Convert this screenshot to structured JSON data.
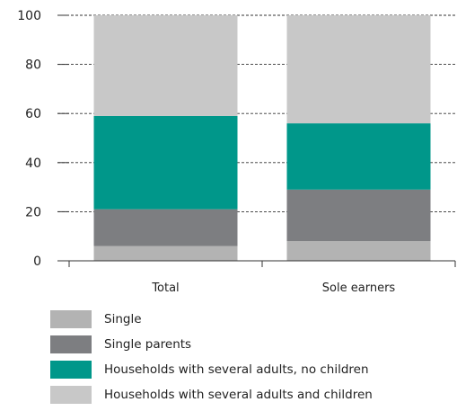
{
  "chart_data": {
    "type": "bar",
    "stacked": true,
    "categories": [
      "Total",
      "Sole earners"
    ],
    "series": [
      {
        "name": "Single",
        "values": [
          6,
          8
        ],
        "color": "#b3b3b3"
      },
      {
        "name": "Single parents",
        "values": [
          15,
          21
        ],
        "color": "#7d7e81"
      },
      {
        "name": "Households with several adults, no children",
        "values": [
          38,
          27
        ],
        "color": "#00978a"
      },
      {
        "name": "Households with several adults and children",
        "values": [
          41,
          44
        ],
        "color": "#c8c8c8"
      }
    ],
    "yticks": [
      0,
      20,
      40,
      60,
      80,
      100
    ],
    "ylim": [
      0,
      100
    ],
    "title": "",
    "xlabel": "",
    "ylabel": "",
    "grid": true,
    "legend_position": "bottom-left"
  }
}
